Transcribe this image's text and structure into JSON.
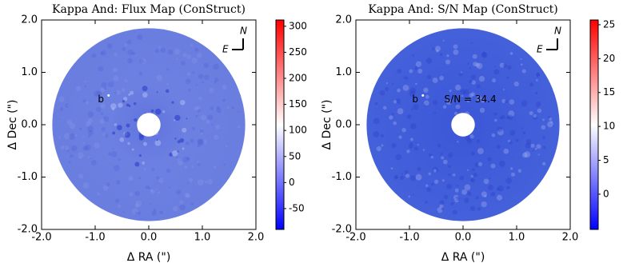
{
  "chart_data": [
    {
      "type": "image",
      "title": "Kappa And: Flux Map (ConStruct)",
      "xlabel": "Δ RA (\")",
      "ylabel": "Δ Dec (\")",
      "xlim": [
        -2,
        2
      ],
      "ylim": [
        -2,
        2
      ],
      "xticks": [
        {
          "value": -2,
          "label": "-2.0"
        },
        {
          "value": -1,
          "label": "-1.0"
        },
        {
          "value": 0,
          "label": "0.0"
        },
        {
          "value": 1,
          "label": "1.0"
        },
        {
          "value": 2,
          "label": "2.0"
        }
      ],
      "yticks": [
        {
          "value": -2,
          "label": "-2.0"
        },
        {
          "value": -1,
          "label": "-1.0"
        },
        {
          "value": 0,
          "label": "0.0"
        },
        {
          "value": 1,
          "label": "1.0"
        },
        {
          "value": 2,
          "label": "2.0"
        }
      ],
      "colorbar_lim": [
        -90,
        312
      ],
      "colorbar_ticks": [
        -50,
        0,
        50,
        100,
        150,
        200,
        250,
        300
      ],
      "colormap": [
        "#0000ff",
        "#ffffff",
        "#ff0000"
      ],
      "annotations": [
        "b"
      ],
      "compass": [
        "N",
        "E"
      ]
    },
    {
      "type": "image",
      "title": "Kappa And: S/N Map (ConStruct)",
      "xlabel": "Δ RA (\")",
      "ylabel": "Δ Dec (\")",
      "xlim": [
        -2,
        2
      ],
      "ylim": [
        -2,
        2
      ],
      "xticks": [
        {
          "value": -2,
          "label": "-2.0"
        },
        {
          "value": -1,
          "label": "-1.0"
        },
        {
          "value": 0,
          "label": "0.0"
        },
        {
          "value": 1,
          "label": "1.0"
        },
        {
          "value": 2,
          "label": "2.0"
        }
      ],
      "yticks": [
        {
          "value": -2,
          "label": "-2.0"
        },
        {
          "value": -1,
          "label": "-1.0"
        },
        {
          "value": 0,
          "label": "0.0"
        },
        {
          "value": 1,
          "label": "1.0"
        },
        {
          "value": 2,
          "label": "2.0"
        }
      ],
      "colorbar_lim": [
        -5.2,
        25.7
      ],
      "colorbar_ticks": [
        0,
        5,
        10,
        15,
        20,
        25
      ],
      "colormap": [
        "#0000ff",
        "#ffffff",
        "#ff0000"
      ],
      "annotations": [
        "b",
        "S/N = 34.4"
      ],
      "compass": [
        "N",
        "E"
      ]
    }
  ]
}
